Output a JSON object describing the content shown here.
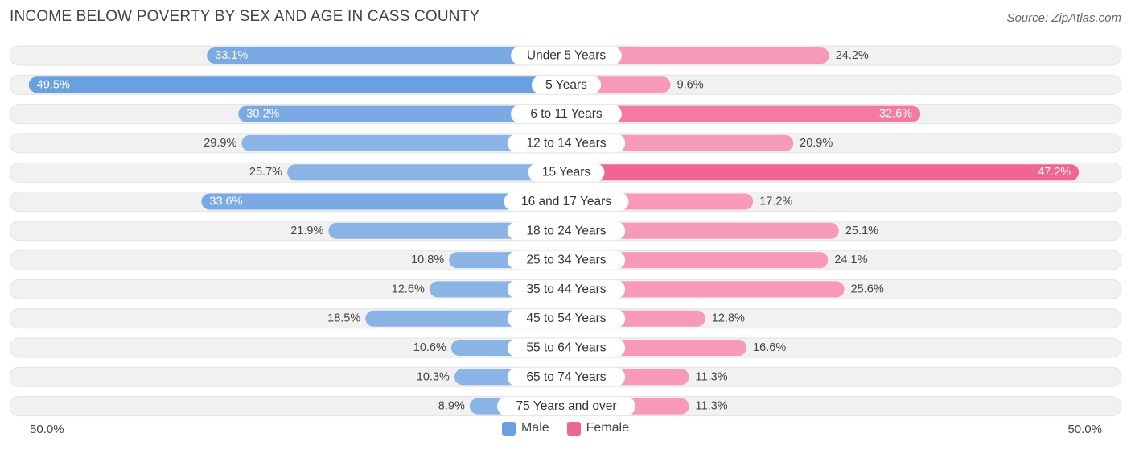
{
  "title": "INCOME BELOW POVERTY BY SEX AND AGE IN CASS COUNTY",
  "source": "Source: ZipAtlas.com",
  "colors": {
    "male": "#8ab4e6",
    "male_strong": "#6a9fe0",
    "female": "#f79ab7",
    "female_strong": "#f06591",
    "track": "#efefef"
  },
  "chart_data": {
    "type": "bar",
    "orientation": "diverging-horizontal",
    "title": "INCOME BELOW POVERTY BY SEX AND AGE IN CASS COUNTY",
    "categories": [
      "Under 5 Years",
      "5 Years",
      "6 to 11 Years",
      "12 to 14 Years",
      "15 Years",
      "16 and 17 Years",
      "18 to 24 Years",
      "25 to 34 Years",
      "35 to 44 Years",
      "45 to 54 Years",
      "55 to 64 Years",
      "65 to 74 Years",
      "75 Years and over"
    ],
    "series": [
      {
        "name": "Male",
        "values": [
          33.1,
          49.5,
          30.2,
          29.9,
          25.7,
          33.6,
          21.9,
          10.8,
          12.6,
          18.5,
          10.6,
          10.3,
          8.9
        ]
      },
      {
        "name": "Female",
        "values": [
          24.2,
          9.6,
          32.6,
          20.9,
          47.2,
          17.2,
          25.1,
          24.1,
          25.6,
          12.8,
          16.6,
          11.3,
          11.3
        ]
      }
    ],
    "value_labels": {
      "male": [
        "33.1%",
        "49.5%",
        "30.2%",
        "29.9%",
        "25.7%",
        "33.6%",
        "21.9%",
        "10.8%",
        "12.6%",
        "18.5%",
        "10.6%",
        "10.3%",
        "8.9%"
      ],
      "female": [
        "24.2%",
        "9.6%",
        "32.6%",
        "20.9%",
        "47.2%",
        "17.2%",
        "25.1%",
        "24.1%",
        "25.6%",
        "12.8%",
        "16.6%",
        "11.3%",
        "11.3%"
      ]
    },
    "xlim": [
      -50,
      50
    ],
    "axis_left_label": "50.0%",
    "axis_right_label": "50.0%",
    "legend": [
      "Male",
      "Female"
    ],
    "legend_position": "bottom-center"
  }
}
